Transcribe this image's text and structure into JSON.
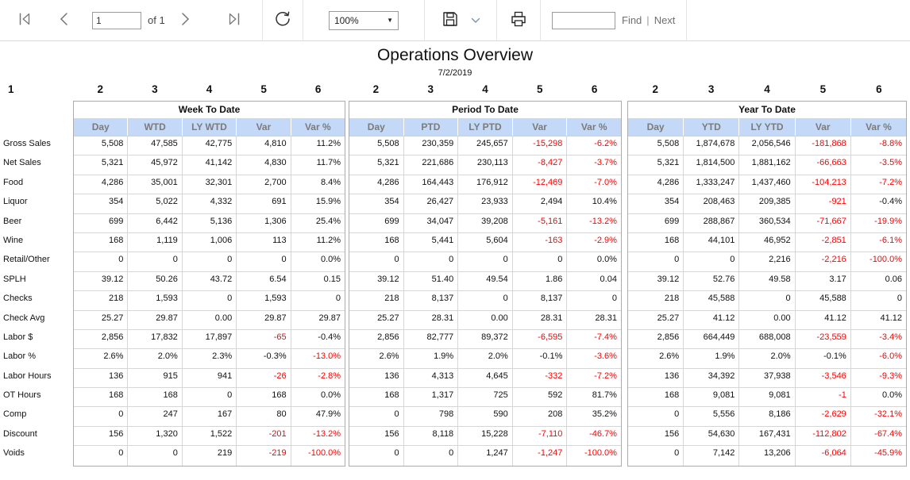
{
  "toolbar": {
    "page_value": "1",
    "of_label": "of 1",
    "zoom_value": "100%",
    "find_placeholder": "",
    "find_label": "Find",
    "find_divider": "|",
    "next_label": "Next",
    "icons": [
      "first-page",
      "previous-page",
      "next-page",
      "last-page",
      "refresh",
      "zoom-dropdown-arrow",
      "save",
      "save-dropdown",
      "print"
    ]
  },
  "report": {
    "title": "Operations Overview",
    "date": "7/2/2019",
    "label_column_number": "1",
    "column_numbers": [
      "2",
      "3",
      "4",
      "5",
      "6"
    ],
    "row_labels": [
      "Gross Sales",
      "Net Sales",
      "Food",
      "Liquor",
      "Beer",
      "Wine",
      "Retail/Other",
      "SPLH",
      "Checks",
      "Check Avg",
      "Labor $",
      "Labor %",
      "Labor Hours",
      "OT Hours",
      "Comp",
      "Discount",
      "Voids"
    ],
    "sections": [
      {
        "title": "Week To Date",
        "headers": [
          "Day",
          "WTD",
          "LY WTD",
          "Var",
          "Var %"
        ],
        "rows": [
          {
            "cells": [
              "5,508",
              "47,585",
              "42,775",
              "4,810",
              "11.2%"
            ],
            "red": [
              0,
              0,
              0,
              0,
              0
            ]
          },
          {
            "cells": [
              "5,321",
              "45,972",
              "41,142",
              "4,830",
              "11.7%"
            ],
            "red": [
              0,
              0,
              0,
              0,
              0
            ]
          },
          {
            "cells": [
              "4,286",
              "35,001",
              "32,301",
              "2,700",
              "8.4%"
            ],
            "red": [
              0,
              0,
              0,
              0,
              0
            ]
          },
          {
            "cells": [
              "354",
              "5,022",
              "4,332",
              "691",
              "15.9%"
            ],
            "red": [
              0,
              0,
              0,
              0,
              0
            ]
          },
          {
            "cells": [
              "699",
              "6,442",
              "5,136",
              "1,306",
              "25.4%"
            ],
            "red": [
              0,
              0,
              0,
              0,
              0
            ]
          },
          {
            "cells": [
              "168",
              "1,119",
              "1,006",
              "113",
              "11.2%"
            ],
            "red": [
              0,
              0,
              0,
              0,
              0
            ]
          },
          {
            "cells": [
              "0",
              "0",
              "0",
              "0",
              "0.0%"
            ],
            "red": [
              0,
              0,
              0,
              0,
              0
            ]
          },
          {
            "cells": [
              "39.12",
              "50.26",
              "43.72",
              "6.54",
              "0.15"
            ],
            "red": [
              0,
              0,
              0,
              0,
              0
            ]
          },
          {
            "cells": [
              "218",
              "1,593",
              "0",
              "1,593",
              "0"
            ],
            "red": [
              0,
              0,
              0,
              0,
              0
            ]
          },
          {
            "cells": [
              "25.27",
              "29.87",
              "0.00",
              "29.87",
              "29.87"
            ],
            "red": [
              0,
              0,
              0,
              0,
              0
            ]
          },
          {
            "cells": [
              "2,856",
              "17,832",
              "17,897",
              "-65",
              "-0.4%"
            ],
            "red": [
              0,
              0,
              0,
              1,
              0
            ]
          },
          {
            "cells": [
              "2.6%",
              "2.0%",
              "2.3%",
              "-0.3%",
              "-13.0%"
            ],
            "red": [
              0,
              0,
              0,
              0,
              1
            ]
          },
          {
            "cells": [
              "136",
              "915",
              "941",
              "-26",
              "-2.8%"
            ],
            "red": [
              0,
              0,
              0,
              1,
              1
            ]
          },
          {
            "cells": [
              "168",
              "168",
              "0",
              "168",
              "0.0%"
            ],
            "red": [
              0,
              0,
              0,
              0,
              0
            ]
          },
          {
            "cells": [
              "0",
              "247",
              "167",
              "80",
              "47.9%"
            ],
            "red": [
              0,
              0,
              0,
              0,
              0
            ]
          },
          {
            "cells": [
              "156",
              "1,320",
              "1,522",
              "-201",
              "-13.2%"
            ],
            "red": [
              0,
              0,
              0,
              1,
              1
            ]
          },
          {
            "cells": [
              "0",
              "0",
              "219",
              "-219",
              "-100.0%"
            ],
            "red": [
              0,
              0,
              0,
              1,
              1
            ]
          }
        ]
      },
      {
        "title": "Period To Date",
        "headers": [
          "Day",
          "PTD",
          "LY PTD",
          "Var",
          "Var %"
        ],
        "rows": [
          {
            "cells": [
              "5,508",
              "230,359",
              "245,657",
              "-15,298",
              "-6.2%"
            ],
            "red": [
              0,
              0,
              0,
              1,
              1
            ]
          },
          {
            "cells": [
              "5,321",
              "221,686",
              "230,113",
              "-8,427",
              "-3.7%"
            ],
            "red": [
              0,
              0,
              0,
              1,
              1
            ]
          },
          {
            "cells": [
              "4,286",
              "164,443",
              "176,912",
              "-12,469",
              "-7.0%"
            ],
            "red": [
              0,
              0,
              0,
              1,
              1
            ]
          },
          {
            "cells": [
              "354",
              "26,427",
              "23,933",
              "2,494",
              "10.4%"
            ],
            "red": [
              0,
              0,
              0,
              0,
              0
            ]
          },
          {
            "cells": [
              "699",
              "34,047",
              "39,208",
              "-5,161",
              "-13.2%"
            ],
            "red": [
              0,
              0,
              0,
              1,
              1
            ]
          },
          {
            "cells": [
              "168",
              "5,441",
              "5,604",
              "-163",
              "-2.9%"
            ],
            "red": [
              0,
              0,
              0,
              1,
              1
            ]
          },
          {
            "cells": [
              "0",
              "0",
              "0",
              "0",
              "0.0%"
            ],
            "red": [
              0,
              0,
              0,
              0,
              0
            ]
          },
          {
            "cells": [
              "39.12",
              "51.40",
              "49.54",
              "1.86",
              "0.04"
            ],
            "red": [
              0,
              0,
              0,
              0,
              0
            ]
          },
          {
            "cells": [
              "218",
              "8,137",
              "0",
              "8,137",
              "0"
            ],
            "red": [
              0,
              0,
              0,
              0,
              0
            ]
          },
          {
            "cells": [
              "25.27",
              "28.31",
              "0.00",
              "28.31",
              "28.31"
            ],
            "red": [
              0,
              0,
              0,
              0,
              0
            ]
          },
          {
            "cells": [
              "2,856",
              "82,777",
              "89,372",
              "-6,595",
              "-7.4%"
            ],
            "red": [
              0,
              0,
              0,
              1,
              1
            ]
          },
          {
            "cells": [
              "2.6%",
              "1.9%",
              "2.0%",
              "-0.1%",
              "-3.6%"
            ],
            "red": [
              0,
              0,
              0,
              0,
              1
            ]
          },
          {
            "cells": [
              "136",
              "4,313",
              "4,645",
              "-332",
              "-7.2%"
            ],
            "red": [
              0,
              0,
              0,
              1,
              1
            ]
          },
          {
            "cells": [
              "168",
              "1,317",
              "725",
              "592",
              "81.7%"
            ],
            "red": [
              0,
              0,
              0,
              0,
              0
            ]
          },
          {
            "cells": [
              "0",
              "798",
              "590",
              "208",
              "35.2%"
            ],
            "red": [
              0,
              0,
              0,
              0,
              0
            ]
          },
          {
            "cells": [
              "156",
              "8,118",
              "15,228",
              "-7,110",
              "-46.7%"
            ],
            "red": [
              0,
              0,
              0,
              1,
              1
            ]
          },
          {
            "cells": [
              "0",
              "0",
              "1,247",
              "-1,247",
              "-100.0%"
            ],
            "red": [
              0,
              0,
              0,
              1,
              1
            ]
          }
        ]
      },
      {
        "title": "Year To Date",
        "headers": [
          "Day",
          "YTD",
          "LY YTD",
          "Var",
          "Var %"
        ],
        "rows": [
          {
            "cells": [
              "5,508",
              "1,874,678",
              "2,056,546",
              "-181,868",
              "-8.8%"
            ],
            "red": [
              0,
              0,
              0,
              1,
              1
            ]
          },
          {
            "cells": [
              "5,321",
              "1,814,500",
              "1,881,162",
              "-66,663",
              "-3.5%"
            ],
            "red": [
              0,
              0,
              0,
              1,
              1
            ]
          },
          {
            "cells": [
              "4,286",
              "1,333,247",
              "1,437,460",
              "-104,213",
              "-7.2%"
            ],
            "red": [
              0,
              0,
              0,
              1,
              1
            ]
          },
          {
            "cells": [
              "354",
              "208,463",
              "209,385",
              "-921",
              "-0.4%"
            ],
            "red": [
              0,
              0,
              0,
              1,
              0
            ]
          },
          {
            "cells": [
              "699",
              "288,867",
              "360,534",
              "-71,667",
              "-19.9%"
            ],
            "red": [
              0,
              0,
              0,
              1,
              1
            ]
          },
          {
            "cells": [
              "168",
              "44,101",
              "46,952",
              "-2,851",
              "-6.1%"
            ],
            "red": [
              0,
              0,
              0,
              1,
              1
            ]
          },
          {
            "cells": [
              "0",
              "0",
              "2,216",
              "-2,216",
              "-100.0%"
            ],
            "red": [
              0,
              0,
              0,
              1,
              1
            ]
          },
          {
            "cells": [
              "39.12",
              "52.76",
              "49.58",
              "3.17",
              "0.06"
            ],
            "red": [
              0,
              0,
              0,
              0,
              0
            ]
          },
          {
            "cells": [
              "218",
              "45,588",
              "0",
              "45,588",
              "0"
            ],
            "red": [
              0,
              0,
              0,
              0,
              0
            ]
          },
          {
            "cells": [
              "25.27",
              "41.12",
              "0.00",
              "41.12",
              "41.12"
            ],
            "red": [
              0,
              0,
              0,
              0,
              0
            ]
          },
          {
            "cells": [
              "2,856",
              "664,449",
              "688,008",
              "-23,559",
              "-3.4%"
            ],
            "red": [
              0,
              0,
              0,
              1,
              1
            ]
          },
          {
            "cells": [
              "2.6%",
              "1.9%",
              "2.0%",
              "-0.1%",
              "-6.0%"
            ],
            "red": [
              0,
              0,
              0,
              0,
              1
            ]
          },
          {
            "cells": [
              "136",
              "34,392",
              "37,938",
              "-3,546",
              "-9.3%"
            ],
            "red": [
              0,
              0,
              0,
              1,
              1
            ]
          },
          {
            "cells": [
              "168",
              "9,081",
              "9,081",
              "-1",
              "0.0%"
            ],
            "red": [
              0,
              0,
              0,
              1,
              0
            ]
          },
          {
            "cells": [
              "0",
              "5,556",
              "8,186",
              "-2,629",
              "-32.1%"
            ],
            "red": [
              0,
              0,
              0,
              1,
              1
            ]
          },
          {
            "cells": [
              "156",
              "54,630",
              "167,431",
              "-112,802",
              "-67.4%"
            ],
            "red": [
              0,
              0,
              0,
              1,
              1
            ]
          },
          {
            "cells": [
              "0",
              "7,142",
              "13,206",
              "-6,064",
              "-45.9%"
            ],
            "red": [
              0,
              0,
              0,
              1,
              1
            ]
          }
        ]
      }
    ]
  },
  "colors": {
    "negative": "#ff0000",
    "header_bg": "#c4d9f7",
    "header_text": "#7b7b7b",
    "table_border": "#ababab"
  }
}
